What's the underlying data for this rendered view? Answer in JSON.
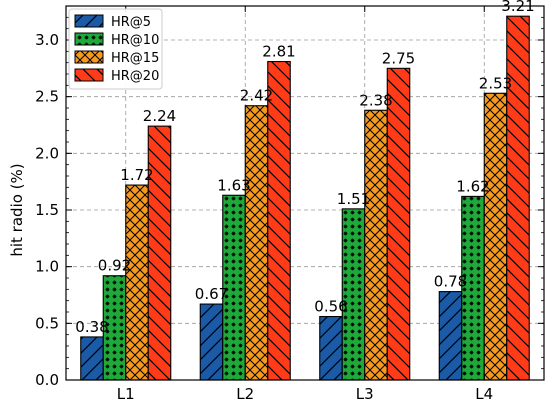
{
  "chart_data": {
    "type": "bar",
    "title": "",
    "xlabel": "",
    "ylabel": "hit radio (%)",
    "ylim": [
      0,
      3.3
    ],
    "yticks": [
      "0.0",
      "0.5",
      "1.0",
      "1.5",
      "2.0",
      "2.5",
      "3.0"
    ],
    "grid": true,
    "legend_position": "top-left",
    "categories": [
      "L1",
      "L2",
      "L3",
      "L4"
    ],
    "series": [
      {
        "name": "HR@5",
        "values": [
          0.38,
          0.67,
          0.56,
          0.78
        ],
        "labels": [
          "0.38",
          "0.67",
          "0.56",
          "0.78"
        ],
        "color": "#1a5aa6",
        "pattern": "diagonal-hatch"
      },
      {
        "name": "HR@10",
        "values": [
          0.92,
          1.63,
          1.51,
          1.62
        ],
        "labels": [
          "0.92",
          "1.63",
          "1.51",
          "1.62"
        ],
        "color": "#1ea93a",
        "pattern": "star-dots"
      },
      {
        "name": "HR@15",
        "values": [
          1.72,
          2.42,
          2.38,
          2.53
        ],
        "labels": [
          "1.72",
          "2.42",
          "2.38",
          "2.53"
        ],
        "color": "#f59a1f",
        "pattern": "cross-hatch"
      },
      {
        "name": "HR@20",
        "values": [
          2.24,
          2.81,
          2.75,
          3.21
        ],
        "labels": [
          "2.24",
          "2.81",
          "2.75",
          "3.21"
        ],
        "color": "#ff3b1a",
        "pattern": "back-diagonal-hatch"
      }
    ]
  }
}
